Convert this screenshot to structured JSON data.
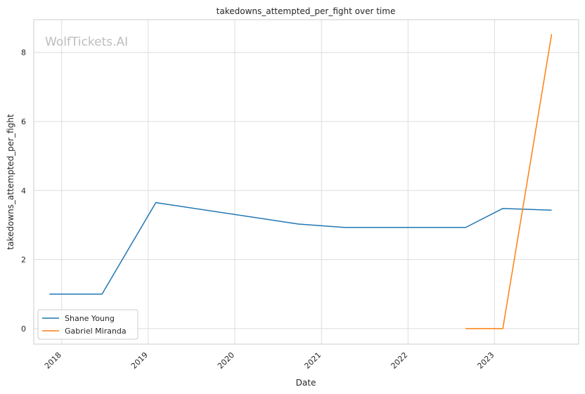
{
  "chart_data": {
    "type": "line",
    "title": "takedowns_attempted_per_fight over time",
    "xlabel": "Date",
    "ylabel": "takedowns_attempted_per_fight",
    "watermark": "WolfTickets.AI",
    "x_ticks": [
      "2018",
      "2019",
      "2020",
      "2021",
      "2022",
      "2023"
    ],
    "y_ticks": [
      0,
      2,
      4,
      6,
      8
    ],
    "xlim": [
      "2017-09-05",
      "2023-12-22"
    ],
    "ylim": [
      -0.45,
      8.95
    ],
    "grid": true,
    "legend_position": "lower-left",
    "series": [
      {
        "name": "Shane Young",
        "color": "#1f77b4",
        "x": [
          "2017-11-10",
          "2018-06-20",
          "2019-02-02",
          "2020-09-25",
          "2021-04-10",
          "2022-09-01",
          "2023-02-05",
          "2023-08-30"
        ],
        "y": [
          1.0,
          1.0,
          3.65,
          3.03,
          2.93,
          2.93,
          3.48,
          3.43
        ]
      },
      {
        "name": "Gabriel Miranda",
        "color": "#ff7f0e",
        "x": [
          "2022-09-01",
          "2023-02-05",
          "2023-08-30"
        ],
        "y": [
          0.0,
          0.0,
          8.53
        ]
      }
    ]
  }
}
